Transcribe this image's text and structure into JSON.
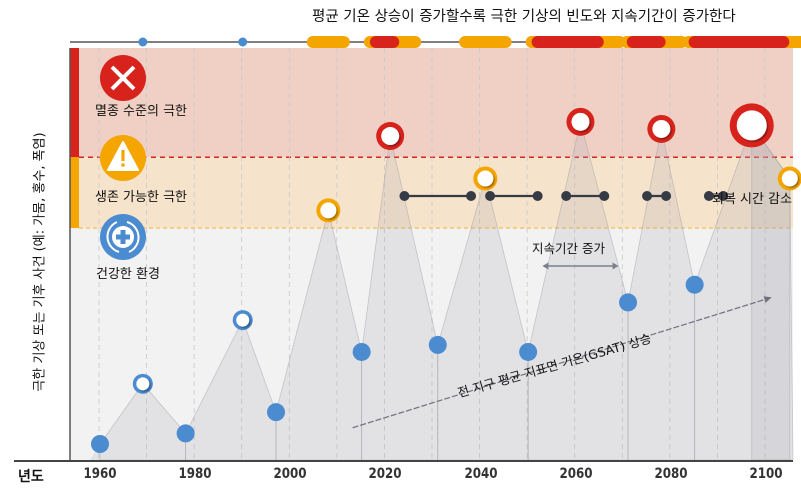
{
  "header": {
    "title": "평균 기온 상승이 증가할수록 극한 기상의 빈도와 지속기간이 증가한다"
  },
  "y_axis_label": "극한 기상 또는 기후 사건 (예: 가뭄, 홍수, 폭염)",
  "x_axis": {
    "label": "년도",
    "ticks": [
      "1960",
      "1980",
      "2000",
      "2020",
      "2040",
      "2060",
      "2080",
      "2100"
    ]
  },
  "zones": [
    {
      "id": "extinction",
      "label": "멸종 수준의 극한",
      "icon": "x-circle-icon",
      "color": "#d7231b",
      "bg": "#f0d0c4"
    },
    {
      "id": "survivable",
      "label": "생존 가능한 극한",
      "icon": "warning-triangle-icon",
      "color": "#f5a500",
      "bg": "#f6e3cb"
    },
    {
      "id": "healthy",
      "label": "건강한 환경",
      "icon": "medical-cycle-icon",
      "color": "#4b8bd0",
      "bg": "#f2f2f2"
    }
  ],
  "annotations": {
    "recovery": "회복 시간 감소",
    "duration": "지속기간 증가",
    "gsat": "전 지구 평균 지표면 기온(GSAT) 상승"
  },
  "chart_data": {
    "type": "line",
    "title": "평균 기온 상승이 증가할수록 극한 기상의 빈도와 지속기간이 증가한다",
    "xlabel": "년도",
    "ylabel": "극한 기상 또는 기후 사건 (예: 가뭄, 홍수, 폭염)",
    "xlim": [
      1955,
      2108
    ],
    "ylim": [
      0,
      100
    ],
    "tick_labels": [
      "1960",
      "1980",
      "2000",
      "2020",
      "2040",
      "2060",
      "2080",
      "2100"
    ],
    "points": [
      {
        "year": 1960,
        "level": 0,
        "kind": "low"
      },
      {
        "year": 1969,
        "level": 17,
        "kind": "peak",
        "zone": "healthy"
      },
      {
        "year": 1978,
        "level": 3,
        "kind": "low"
      },
      {
        "year": 1990,
        "level": 35,
        "kind": "peak",
        "zone": "healthy"
      },
      {
        "year": 1997,
        "level": 9,
        "kind": "low"
      },
      {
        "year": 2008,
        "level": 66,
        "kind": "peak",
        "zone": "survivable"
      },
      {
        "year": 2015,
        "level": 26,
        "kind": "low"
      },
      {
        "year": 2021,
        "level": 87,
        "kind": "peak",
        "zone": "extinction"
      },
      {
        "year": 2031,
        "level": 28,
        "kind": "low"
      },
      {
        "year": 2041,
        "level": 75,
        "kind": "peak",
        "zone": "survivable"
      },
      {
        "year": 2050,
        "level": 26,
        "kind": "low"
      },
      {
        "year": 2061,
        "level": 91,
        "kind": "peak",
        "zone": "extinction"
      },
      {
        "year": 2071,
        "level": 40,
        "kind": "low"
      },
      {
        "year": 2078,
        "level": 89,
        "kind": "peak",
        "zone": "extinction"
      },
      {
        "year": 2085,
        "level": 45,
        "kind": "low"
      },
      {
        "year": 2097,
        "level": 90,
        "kind": "peak",
        "zone": "extinction",
        "large": true
      },
      {
        "year": 2105,
        "level": 75,
        "kind": "peak",
        "zone": "survivable"
      }
    ],
    "zone_thresholds": {
      "survivable": 61,
      "extinction": 81
    },
    "timeline_events": [
      {
        "year": 1969,
        "end": 1969,
        "type": "healthy"
      },
      {
        "year": 1990,
        "end": 1990,
        "type": "healthy"
      },
      {
        "year": 2006,
        "end": 2010,
        "type": "survivable"
      },
      {
        "year": 2018,
        "end": 2025,
        "type": "extinction-with-survivable"
      },
      {
        "year": 2038,
        "end": 2044,
        "type": "survivable"
      },
      {
        "year": 2052,
        "end": 2068,
        "type": "extinction-with-survivable"
      },
      {
        "year": 2072,
        "end": 2081,
        "type": "extinction-with-survivable"
      },
      {
        "year": 2085,
        "end": 2107,
        "type": "extinction-with-survivable"
      }
    ],
    "recovery_gaps": [
      {
        "start": 2024,
        "end": 2038
      },
      {
        "start": 2042,
        "end": 2052
      },
      {
        "start": 2058,
        "end": 2066
      },
      {
        "start": 2075,
        "end": 2079
      },
      {
        "start": 2088,
        "end": 2091
      }
    ],
    "duration_arrow": {
      "start": 2053,
      "end": 2069
    },
    "gsat_arrow": {
      "start_year": 2011,
      "start_level": 6,
      "end_year": 2102,
      "end_level": 40
    }
  }
}
